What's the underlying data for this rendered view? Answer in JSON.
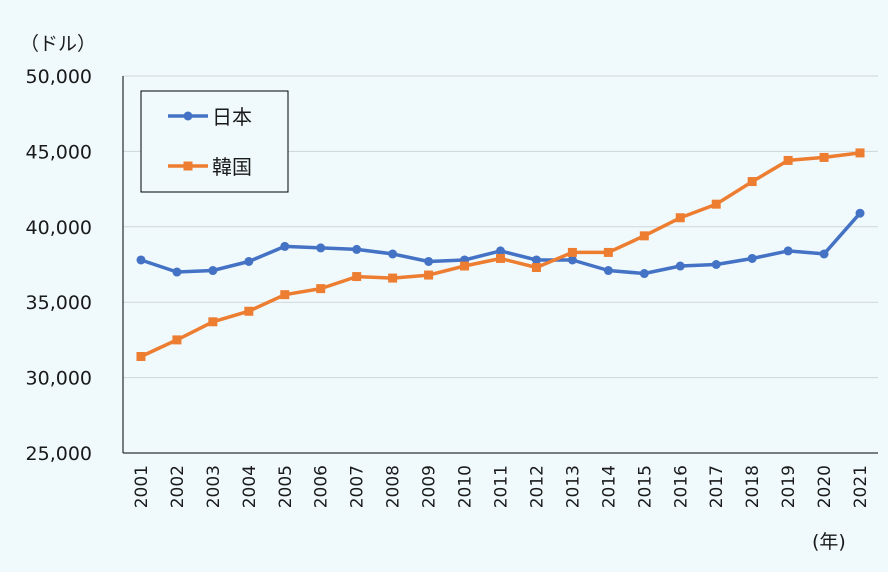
{
  "chart_data": {
    "type": "line",
    "y_unit": "（ドル）",
    "x_unit": "(年)",
    "ylim": [
      25000,
      50000
    ],
    "ytick_values": [
      25000,
      30000,
      35000,
      40000,
      45000,
      50000
    ],
    "ytick_labels": [
      "25,000",
      "30,000",
      "35,000",
      "40,000",
      "45,000",
      "50,000"
    ],
    "categories": [
      "2001",
      "2002",
      "2003",
      "2004",
      "2005",
      "2006",
      "2007",
      "2008",
      "2009",
      "2010",
      "2011",
      "2012",
      "2013",
      "2014",
      "2015",
      "2016",
      "2017",
      "2018",
      "2019",
      "2020",
      "2021"
    ],
    "grid": true,
    "legend_position": "top-left",
    "series": [
      {
        "name": "日本",
        "color": "#4472c4",
        "marker": "circle",
        "values": [
          37800,
          37000,
          37100,
          37700,
          38700,
          38600,
          38500,
          38200,
          37700,
          37800,
          38400,
          37800,
          37800,
          37100,
          36900,
          37400,
          37500,
          37900,
          38400,
          38200,
          40900
        ]
      },
      {
        "name": "韓国",
        "color": "#ed7d31",
        "marker": "square",
        "values": [
          31400,
          32500,
          33700,
          34400,
          35500,
          35900,
          36700,
          36600,
          36800,
          37400,
          37900,
          37300,
          38300,
          38300,
          39400,
          40600,
          41500,
          43000,
          44400,
          44600,
          44900
        ]
      }
    ]
  }
}
